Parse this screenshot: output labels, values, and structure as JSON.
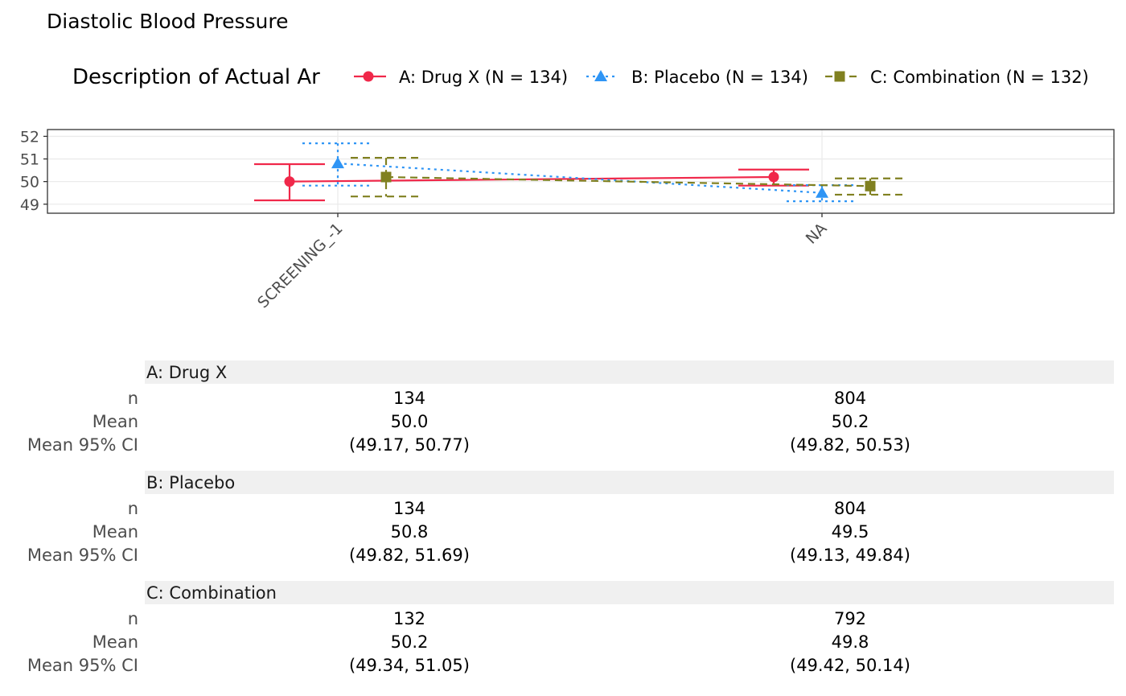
{
  "chart_data": {
    "type": "line",
    "title": "Diastolic Blood Pressure",
    "legend": {
      "title": "Description of Actual Ar",
      "placement": "top"
    },
    "categories": [
      "SCREENING_-1",
      "NA"
    ],
    "ylim": [
      48.6,
      52.3
    ],
    "yticks": [
      "49",
      "50",
      "51",
      "52"
    ],
    "grid": true,
    "series": [
      {
        "name": "A: Drug X (N = 134)",
        "color": "#f0284a",
        "marker": "circle",
        "dash": "solid",
        "mean": [
          50.0,
          50.2
        ],
        "ci_low": [
          49.17,
          49.82
        ],
        "ci_high": [
          50.77,
          50.53
        ]
      },
      {
        "name": "B: Placebo (N = 134)",
        "color": "#2f95f5",
        "marker": "triangle",
        "dash": "dotted",
        "mean": [
          50.8,
          49.5
        ],
        "ci_low": [
          49.82,
          49.13
        ],
        "ci_high": [
          51.69,
          49.84
        ]
      },
      {
        "name": "C: Combination (N = 132)",
        "color": "#808020",
        "marker": "square",
        "dash": "dashed",
        "mean": [
          50.2,
          49.8
        ],
        "ci_low": [
          49.34,
          49.42
        ],
        "ci_high": [
          51.05,
          50.14
        ]
      }
    ]
  },
  "table": {
    "row_labels": [
      "n",
      "Mean",
      "Mean 95% CI"
    ],
    "groups": [
      {
        "label": "A: Drug X",
        "cells": [
          [
            "134",
            "804"
          ],
          [
            "50.0",
            "50.2"
          ],
          [
            "(49.17, 50.77)",
            "(49.82, 50.53)"
          ]
        ]
      },
      {
        "label": "B: Placebo",
        "cells": [
          [
            "134",
            "804"
          ],
          [
            "50.8",
            "49.5"
          ],
          [
            "(49.82, 51.69)",
            "(49.13, 49.84)"
          ]
        ]
      },
      {
        "label": "C: Combination",
        "cells": [
          [
            "132",
            "792"
          ],
          [
            "50.2",
            "49.8"
          ],
          [
            "(49.34, 51.05)",
            "(49.42, 50.14)"
          ]
        ]
      }
    ]
  }
}
